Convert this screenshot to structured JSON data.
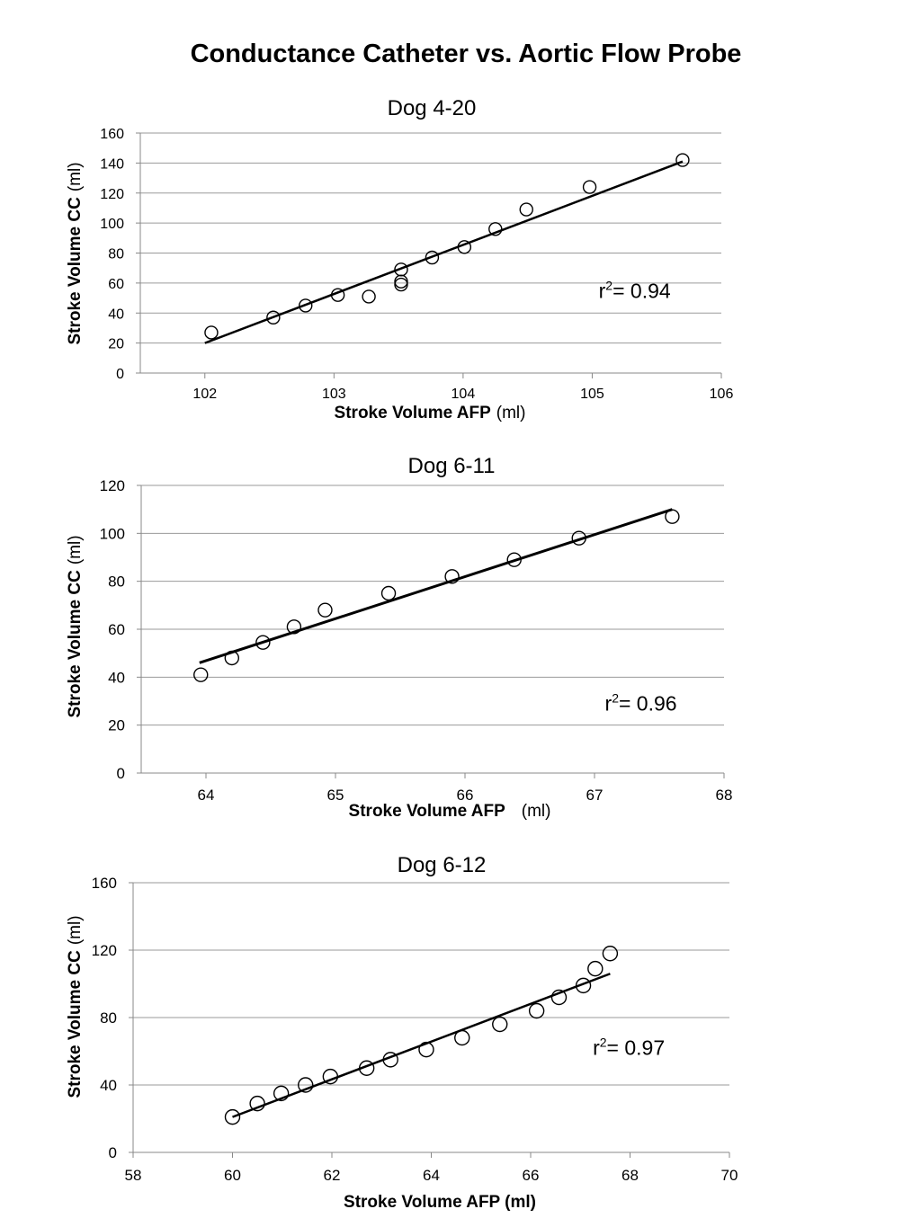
{
  "page": {
    "title": "Conductance Catheter vs. Aortic Flow Probe"
  },
  "chart_data": [
    {
      "type": "scatter",
      "title": "Dog 4-20",
      "xlabel_bold": "Stroke Volume AFP",
      "xlabel_unit": "(ml)",
      "ylabel_bold": "Stroke Volume CC",
      "ylabel_unit": "(ml)",
      "xlim": [
        101.5,
        106
      ],
      "ylim": [
        0,
        160
      ],
      "xticks": [
        102,
        103,
        104,
        105,
        106
      ],
      "yticks": [
        0,
        20,
        40,
        60,
        80,
        100,
        120,
        140,
        160
      ],
      "grid": true,
      "points": [
        {
          "x": 102.05,
          "y": 27
        },
        {
          "x": 102.53,
          "y": 37
        },
        {
          "x": 102.78,
          "y": 45
        },
        {
          "x": 103.03,
          "y": 52
        },
        {
          "x": 103.27,
          "y": 51
        },
        {
          "x": 103.52,
          "y": 59
        },
        {
          "x": 103.52,
          "y": 61
        },
        {
          "x": 103.52,
          "y": 69
        },
        {
          "x": 103.76,
          "y": 77
        },
        {
          "x": 104.01,
          "y": 84
        },
        {
          "x": 104.25,
          "y": 96
        },
        {
          "x": 104.49,
          "y": 109
        },
        {
          "x": 104.98,
          "y": 124
        },
        {
          "x": 105.7,
          "y": 142
        }
      ],
      "fit": {
        "x": [
          102.0,
          105.7
        ],
        "y": [
          20,
          141
        ]
      },
      "r2": {
        "prefix": "r",
        "sup": "2",
        "suffix": "= 0.94",
        "x": 105.05,
        "y": 50
      }
    },
    {
      "type": "scatter",
      "title": "Dog 6-11",
      "xlabel_bold": "Stroke Volume AFP",
      "xlabel_unit": "(ml)",
      "ylabel_bold": "Stroke Volume CC",
      "ylabel_unit": "(ml)",
      "xlim": [
        63.5,
        68
      ],
      "ylim": [
        0,
        120
      ],
      "xticks": [
        64,
        65,
        66,
        67,
        68
      ],
      "yticks": [
        0,
        20,
        40,
        60,
        80,
        100,
        120
      ],
      "grid": true,
      "points": [
        {
          "x": 63.96,
          "y": 41
        },
        {
          "x": 64.2,
          "y": 48
        },
        {
          "x": 64.44,
          "y": 54.5
        },
        {
          "x": 64.68,
          "y": 61
        },
        {
          "x": 64.92,
          "y": 68
        },
        {
          "x": 65.41,
          "y": 75
        },
        {
          "x": 65.9,
          "y": 82
        },
        {
          "x": 66.38,
          "y": 89
        },
        {
          "x": 66.88,
          "y": 98
        },
        {
          "x": 67.6,
          "y": 107
        }
      ],
      "fit": {
        "x": [
          63.95,
          67.6
        ],
        "y": [
          46,
          110
        ]
      },
      "r2": {
        "prefix": "r",
        "sup": "2",
        "suffix": "= 0.96",
        "x": 67.08,
        "y": 26
      }
    },
    {
      "type": "scatter",
      "title": "Dog 6-12",
      "xlabel_bold": "Stroke Volume AFP (ml)",
      "xlabel_unit": "",
      "ylabel_bold": "Stroke Volume CC",
      "ylabel_unit": "(ml)",
      "xlim": [
        58,
        70
      ],
      "ylim": [
        0,
        160
      ],
      "xticks": [
        58,
        60,
        62,
        64,
        66,
        68,
        70
      ],
      "yticks": [
        0,
        40,
        80,
        120,
        160
      ],
      "grid": true,
      "points": [
        {
          "x": 60.0,
          "y": 21
        },
        {
          "x": 60.5,
          "y": 29
        },
        {
          "x": 60.98,
          "y": 35
        },
        {
          "x": 61.47,
          "y": 40
        },
        {
          "x": 61.97,
          "y": 45
        },
        {
          "x": 62.7,
          "y": 50
        },
        {
          "x": 63.18,
          "y": 55
        },
        {
          "x": 63.9,
          "y": 61
        },
        {
          "x": 64.62,
          "y": 68
        },
        {
          "x": 65.38,
          "y": 76
        },
        {
          "x": 66.12,
          "y": 84
        },
        {
          "x": 66.57,
          "y": 92
        },
        {
          "x": 67.06,
          "y": 99
        },
        {
          "x": 67.3,
          "y": 109
        },
        {
          "x": 67.6,
          "y": 118
        }
      ],
      "fit": {
        "x": [
          60.0,
          67.6
        ],
        "y": [
          21,
          106
        ]
      },
      "r2": {
        "prefix": "r",
        "sup": "2",
        "suffix": "= 0.97",
        "x": 67.25,
        "y": 58
      }
    }
  ]
}
